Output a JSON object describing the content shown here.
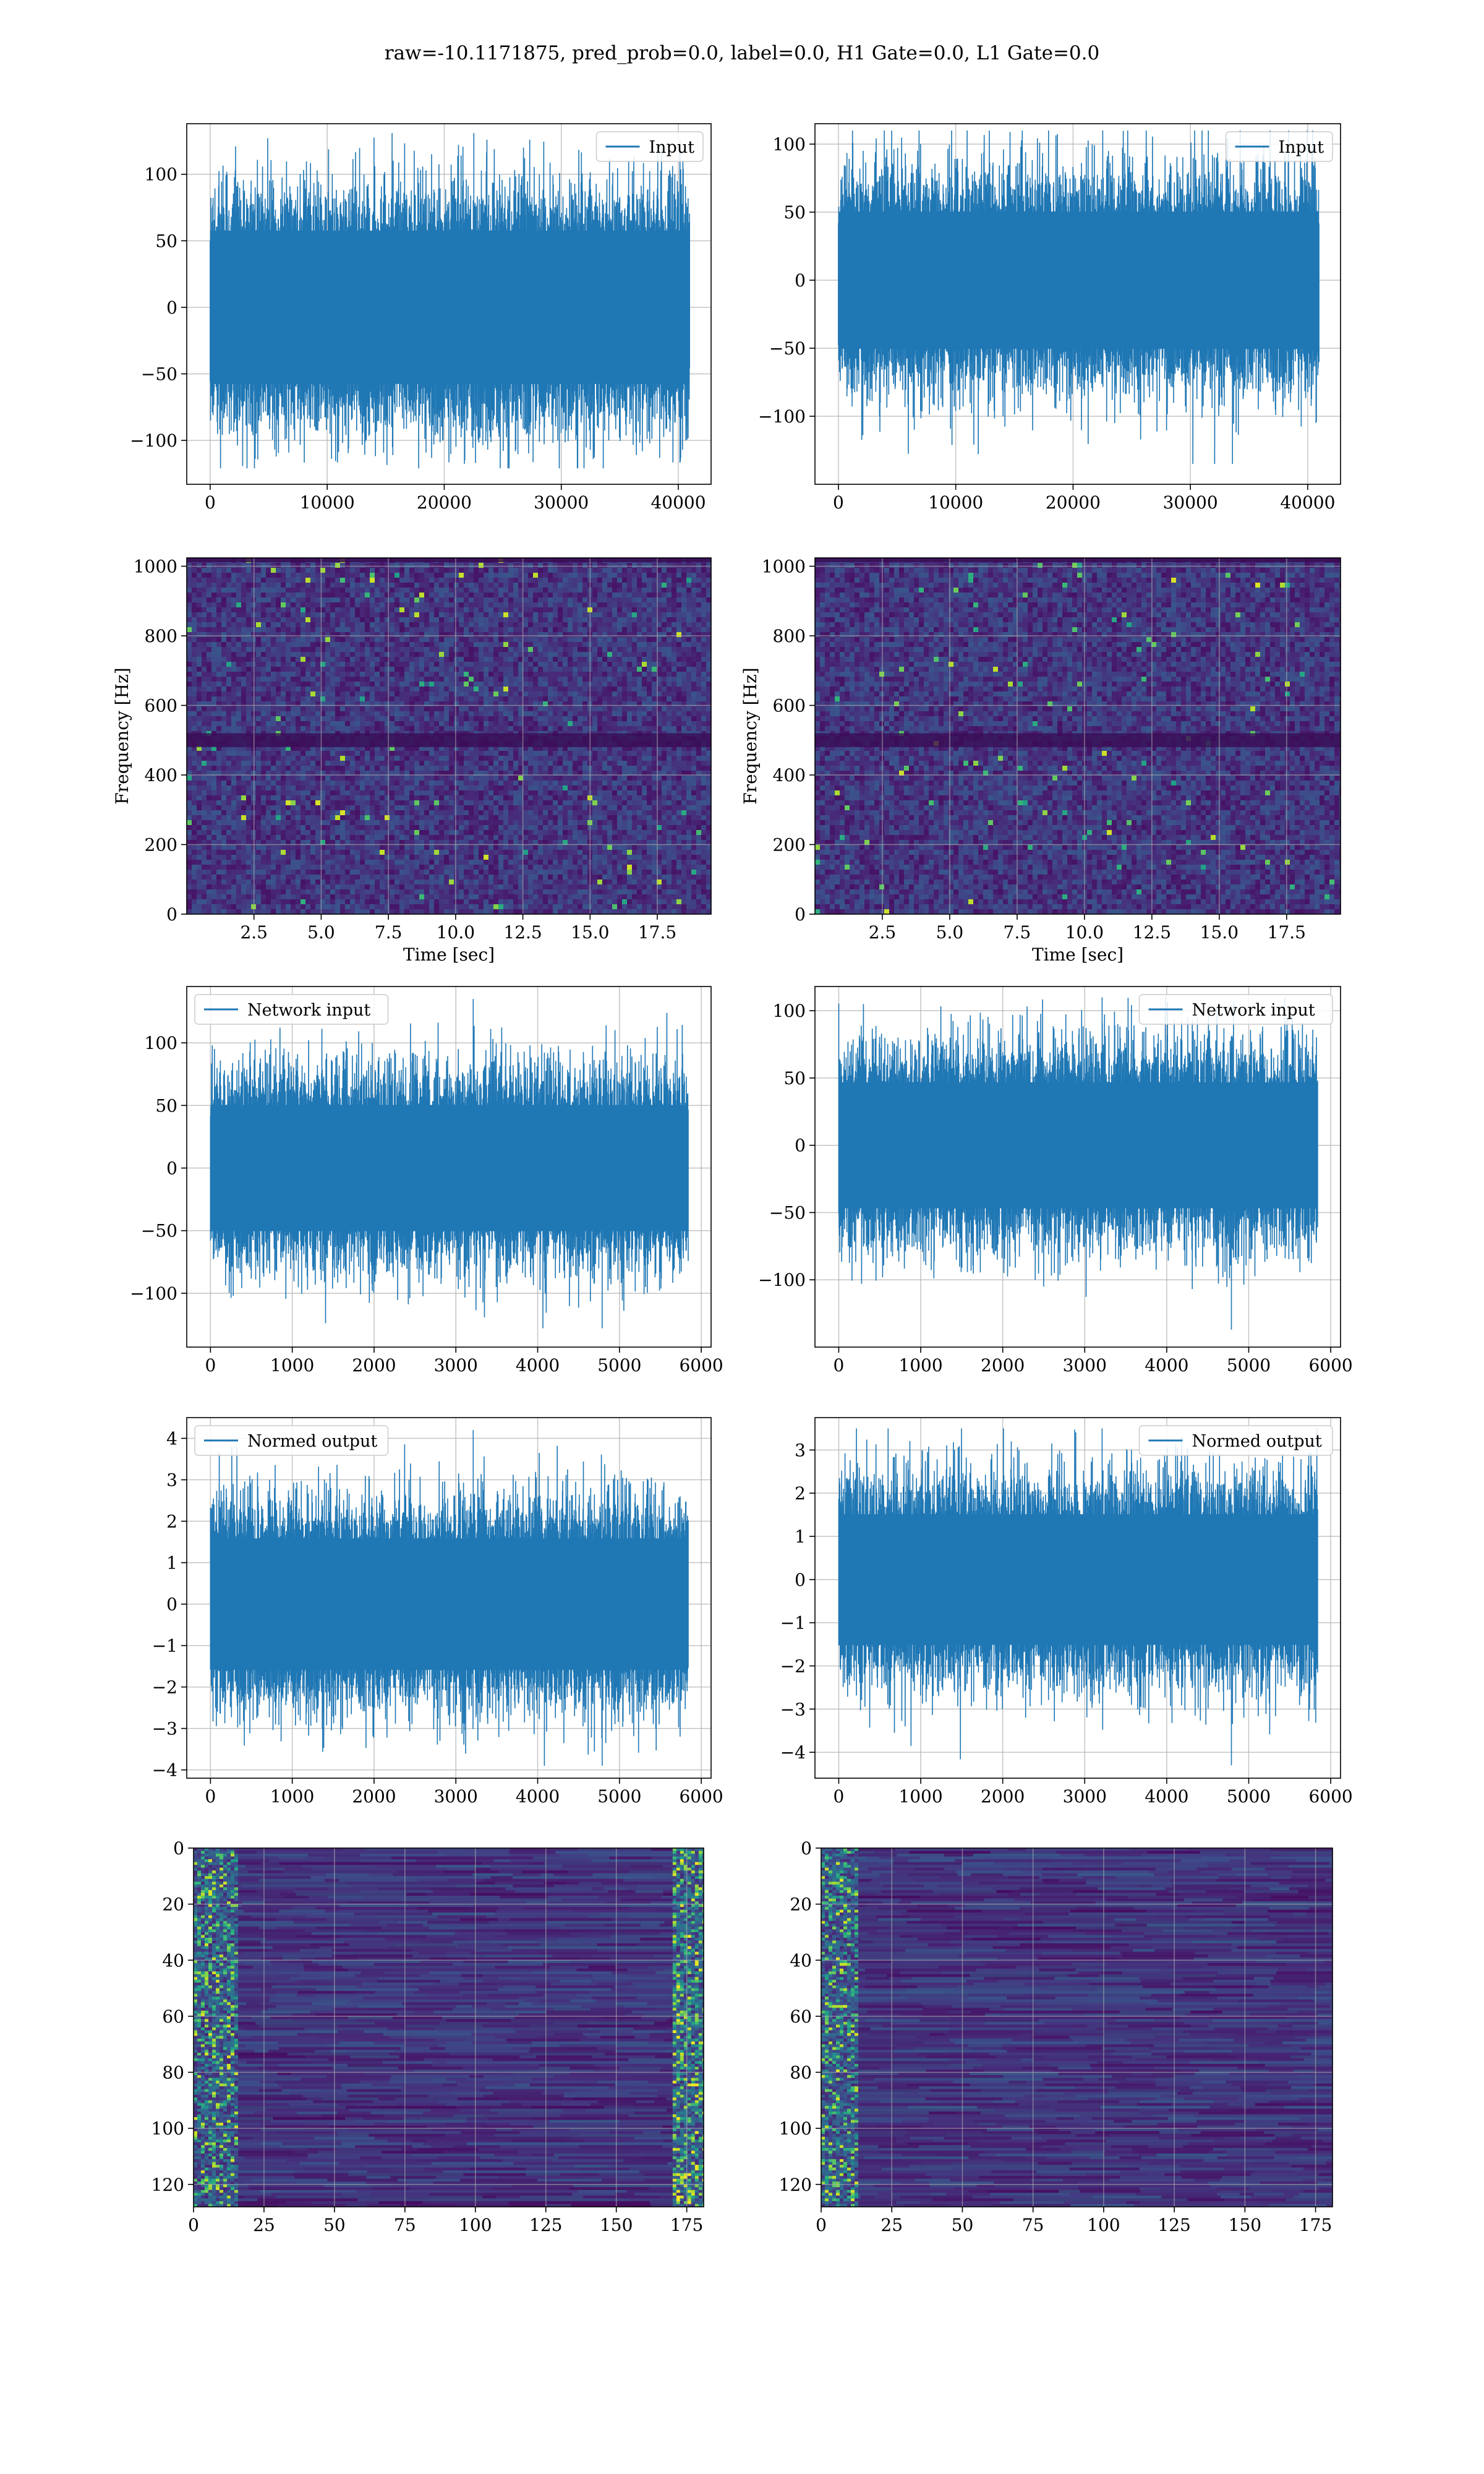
{
  "figure": {
    "title": "raw=-10.1171875, pred_prob=0.0, label=0.0, H1 Gate=0.0, L1 Gate=0.0"
  },
  "colors": {
    "line": "#1f77b4",
    "grid": "#b0b0b0",
    "viridis_low": "#440154",
    "viridis_high": "#fde725"
  },
  "chart_data": [
    {
      "id": "p11",
      "type": "line",
      "legend": "Input",
      "legend_loc": "upper right",
      "xlim": [
        -2000,
        42800
      ],
      "ylim": [
        -133,
        138
      ],
      "xticks": [
        0,
        10000,
        20000,
        30000,
        40000
      ],
      "yticks": [
        -100,
        -50,
        0,
        50,
        100
      ],
      "series": [
        {
          "name": "Input",
          "n_samples": 40960,
          "x_range": [
            0,
            40960
          ],
          "bulk_range": [
            -80,
            80
          ],
          "peak_max": 131,
          "peak_min": -121
        }
      ]
    },
    {
      "id": "p12",
      "type": "line",
      "legend": "Input",
      "legend_loc": "upper right",
      "xlim": [
        -2000,
        42800
      ],
      "ylim": [
        -150,
        115
      ],
      "xticks": [
        0,
        10000,
        20000,
        30000,
        40000
      ],
      "yticks": [
        -100,
        -50,
        0,
        50,
        100
      ],
      "series": [
        {
          "name": "Input",
          "n_samples": 40960,
          "x_range": [
            0,
            40960
          ],
          "bulk_range": [
            -70,
            70
          ],
          "peak_max": 110,
          "peak_min": -135
        }
      ]
    },
    {
      "id": "p21",
      "type": "heatmap",
      "xlabel": "Time [sec]",
      "ylabel": "Frequency [Hz]",
      "xlim": [
        0,
        19.5
      ],
      "ylim": [
        0,
        1024
      ],
      "xticks": [
        2.5,
        5.0,
        7.5,
        10.0,
        12.5,
        15.0,
        17.5
      ],
      "yticks": [
        0,
        200,
        400,
        600,
        800,
        1000
      ],
      "colormap": "viridis",
      "dark_band_hz": [
        480,
        520
      ]
    },
    {
      "id": "p22",
      "type": "heatmap",
      "xlabel": "Time [sec]",
      "ylabel": "Frequency [Hz]",
      "xlim": [
        0,
        19.5
      ],
      "ylim": [
        0,
        1024
      ],
      "xticks": [
        2.5,
        5.0,
        7.5,
        10.0,
        12.5,
        15.0,
        17.5
      ],
      "yticks": [
        0,
        200,
        400,
        600,
        800,
        1000
      ],
      "colormap": "viridis",
      "dark_band_hz": [
        480,
        520
      ]
    },
    {
      "id": "p31",
      "type": "line",
      "legend": "Network input",
      "legend_loc": "upper left",
      "xlim": [
        -290,
        6120
      ],
      "ylim": [
        -143,
        145
      ],
      "xticks": [
        0,
        1000,
        2000,
        3000,
        4000,
        5000,
        6000
      ],
      "yticks": [
        -100,
        -50,
        0,
        50,
        100
      ],
      "series": [
        {
          "name": "Network input",
          "n_samples": 5840,
          "x_range": [
            0,
            5840
          ],
          "bulk_range": [
            -70,
            70
          ],
          "peak_max": 135,
          "peak_min": -128
        }
      ]
    },
    {
      "id": "p32",
      "type": "line",
      "legend": "Network input",
      "legend_loc": "upper right",
      "xlim": [
        -290,
        6120
      ],
      "ylim": [
        -150,
        118
      ],
      "xticks": [
        0,
        1000,
        2000,
        3000,
        4000,
        5000,
        6000
      ],
      "yticks": [
        -100,
        -50,
        0,
        50,
        100
      ],
      "series": [
        {
          "name": "Network input",
          "n_samples": 5840,
          "x_range": [
            0,
            5840
          ],
          "bulk_range": [
            -65,
            65
          ],
          "peak_max": 110,
          "peak_min": -137
        }
      ]
    },
    {
      "id": "p41",
      "type": "line",
      "legend": "Normed output",
      "legend_loc": "upper left",
      "xlim": [
        -290,
        6120
      ],
      "ylim": [
        -4.2,
        4.5
      ],
      "xticks": [
        0,
        1000,
        2000,
        3000,
        4000,
        5000,
        6000
      ],
      "yticks": [
        -4,
        -3,
        -2,
        -1,
        0,
        1,
        2,
        3,
        4
      ],
      "series": [
        {
          "name": "Normed output",
          "n_samples": 5840,
          "x_range": [
            0,
            5840
          ],
          "bulk_range": [
            -2.2,
            2.2
          ],
          "peak_max": 4.2,
          "peak_min": -3.9
        }
      ]
    },
    {
      "id": "p42",
      "type": "line",
      "legend": "Normed output",
      "legend_loc": "upper right",
      "xlim": [
        -290,
        6120
      ],
      "ylim": [
        -4.6,
        3.75
      ],
      "xticks": [
        0,
        1000,
        2000,
        3000,
        4000,
        5000,
        6000
      ],
      "yticks": [
        -4,
        -3,
        -2,
        -1,
        0,
        1,
        2,
        3
      ],
      "series": [
        {
          "name": "Normed output",
          "n_samples": 5840,
          "x_range": [
            0,
            5840
          ],
          "bulk_range": [
            -2.1,
            2.1
          ],
          "peak_max": 3.5,
          "peak_min": -4.3
        }
      ]
    },
    {
      "id": "p51",
      "type": "heatmap",
      "xlim": [
        0,
        181
      ],
      "ylim": [
        128,
        0
      ],
      "xticks": [
        0,
        25,
        50,
        75,
        100,
        125,
        150,
        175
      ],
      "yticks": [
        0,
        20,
        40,
        60,
        80,
        100,
        120
      ],
      "colormap": "viridis",
      "rows": 128,
      "cols": 181,
      "bright_columns": [
        0,
        15,
        170,
        181
      ]
    },
    {
      "id": "p52",
      "type": "heatmap",
      "xlim": [
        0,
        181
      ],
      "ylim": [
        128,
        0
      ],
      "xticks": [
        0,
        25,
        50,
        75,
        100,
        125,
        150,
        175
      ],
      "yticks": [
        0,
        20,
        40,
        60,
        80,
        100,
        120
      ],
      "colormap": "viridis",
      "rows": 128,
      "cols": 181,
      "bright_columns": [
        0,
        12
      ]
    }
  ]
}
